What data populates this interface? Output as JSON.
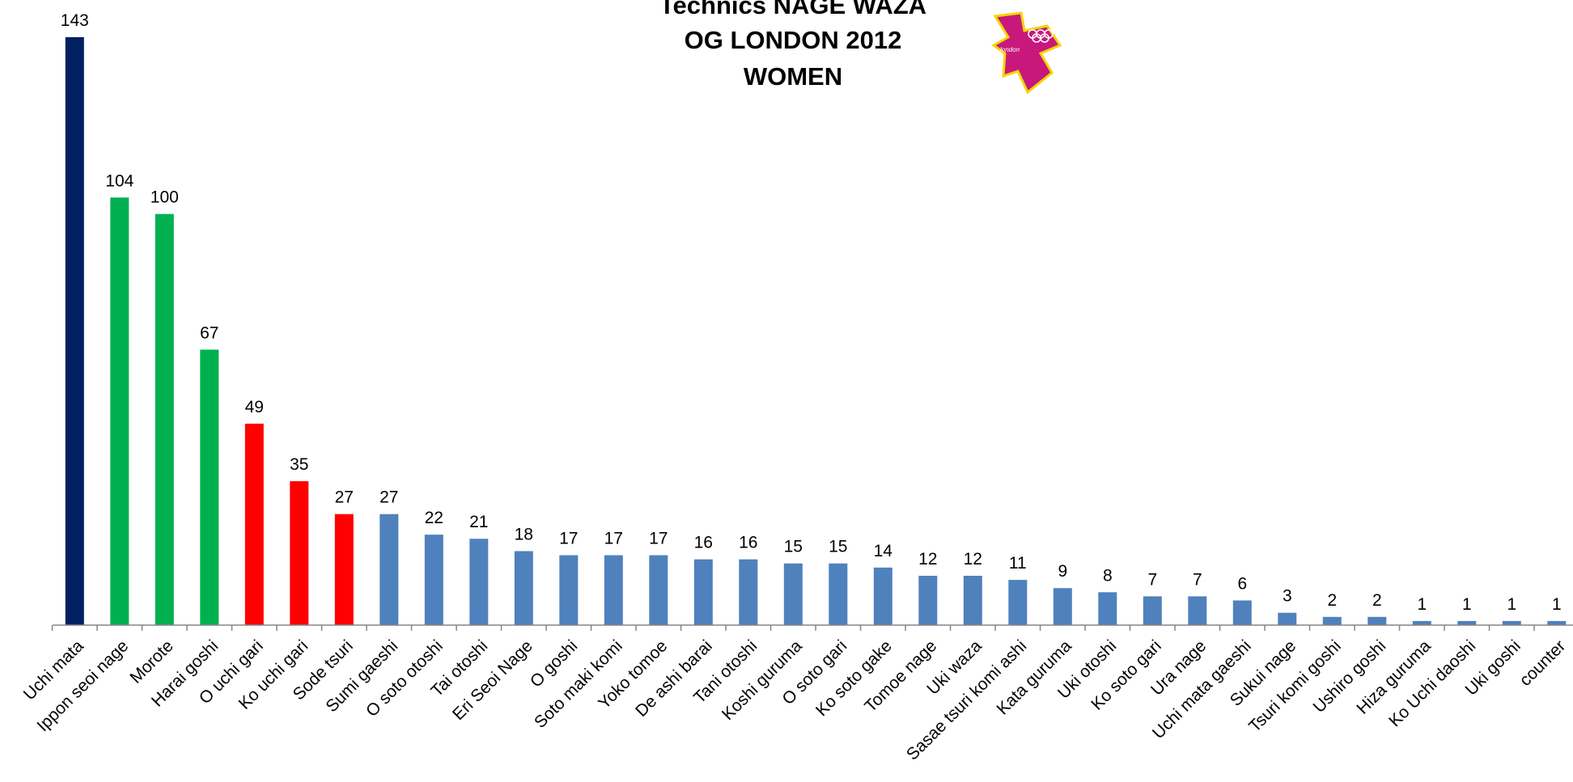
{
  "chart_data": {
    "type": "bar",
    "title_lines": [
      "Technics NAGE WAZA",
      "OG LONDON 2012",
      "WOMEN"
    ],
    "categories": [
      "Uchi mata",
      "Ippon seoi nage",
      "Morote",
      "Harai goshi",
      "O uchi gari",
      "Ko uchi gari",
      "Sode tsuri",
      "Sumi gaeshi",
      "O soto otoshi",
      "Tai otoshi",
      "Eri Seoi Nage",
      "O goshi",
      "Soto maki komi",
      "Yoko tomoe",
      "De ashi barai",
      "Tani otoshi",
      "Koshi guruma",
      "O soto gari",
      "Ko soto gake",
      "Tomoe nage",
      "Uki waza",
      "Sasae tsuri komi ashi",
      "Kata guruma",
      "Uki otoshi",
      "Ko soto gari",
      "Ura nage",
      "Uchi mata gaeshi",
      "Sukui nage",
      "Tsuri komi goshi",
      "Ushiro goshi",
      "Hiza guruma",
      "Ko Uchi daoshi",
      "Uki goshi",
      "counter"
    ],
    "values": [
      143,
      104,
      100,
      67,
      49,
      35,
      27,
      27,
      22,
      21,
      18,
      17,
      17,
      17,
      16,
      16,
      15,
      15,
      14,
      12,
      12,
      11,
      9,
      8,
      7,
      7,
      6,
      3,
      2,
      2,
      1,
      1,
      1,
      1
    ],
    "bar_colors": [
      "#002060",
      "#00b050",
      "#00b050",
      "#00b050",
      "#ff0000",
      "#ff0000",
      "#ff0000",
      "#4f81bd",
      "#4f81bd",
      "#4f81bd",
      "#4f81bd",
      "#4f81bd",
      "#4f81bd",
      "#4f81bd",
      "#4f81bd",
      "#4f81bd",
      "#4f81bd",
      "#4f81bd",
      "#4f81bd",
      "#4f81bd",
      "#4f81bd",
      "#4f81bd",
      "#4f81bd",
      "#4f81bd",
      "#4f81bd",
      "#4f81bd",
      "#4f81bd",
      "#4f81bd",
      "#4f81bd",
      "#4f81bd",
      "#4f81bd",
      "#4f81bd",
      "#4f81bd",
      "#4f81bd"
    ],
    "ylim": [
      0,
      143
    ],
    "grid": false,
    "data_labels": true,
    "logo": "london-2012-logo",
    "logo_text": "london"
  }
}
